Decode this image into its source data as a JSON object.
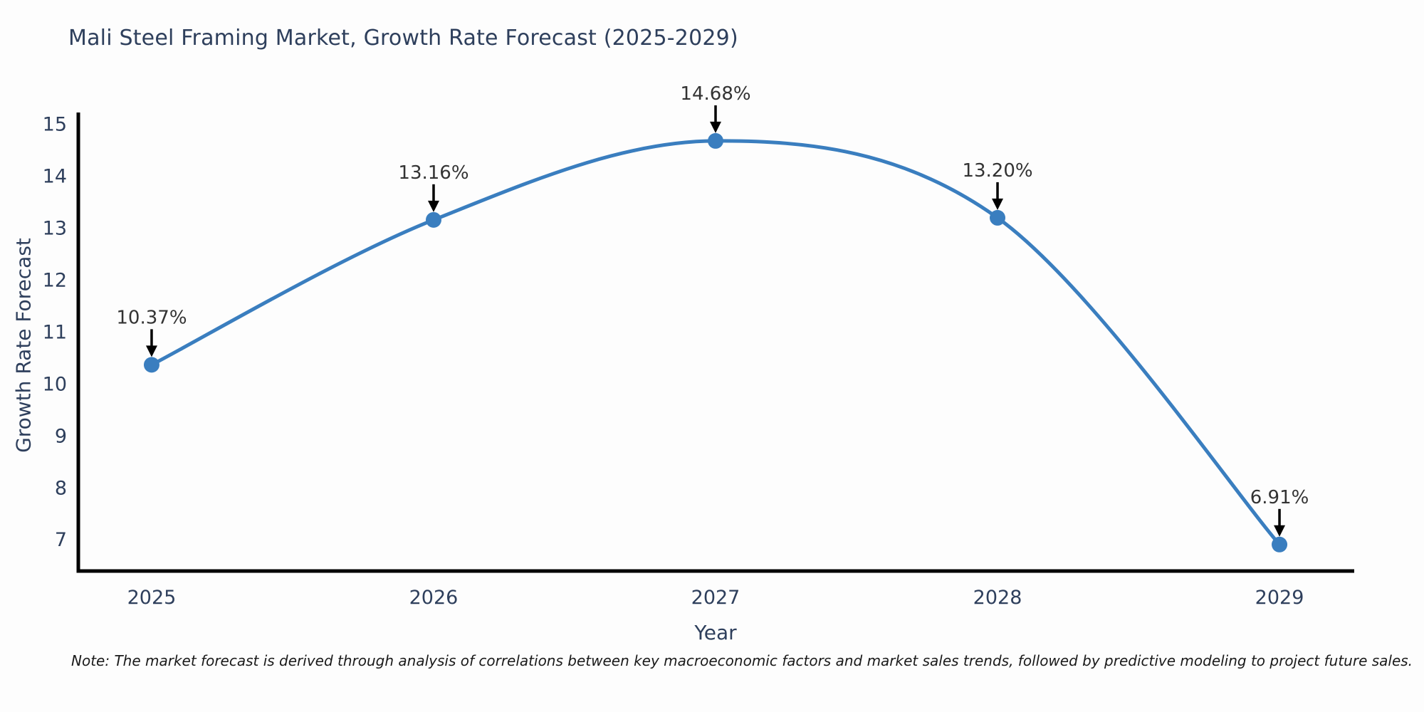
{
  "note": "Note: The market forecast is derived through analysis of correlations between key macroeconomic factors and market sales trends, followed by predictive modeling to project future sales.",
  "chart_data": {
    "type": "line",
    "title": "Mali Steel Framing Market, Growth Rate Forecast (2025-2029)",
    "xlabel": "Year",
    "ylabel": "Growth Rate Forecast",
    "categories": [
      "2025",
      "2026",
      "2027",
      "2028",
      "2029"
    ],
    "x": [
      2025,
      2026,
      2027,
      2028,
      2029
    ],
    "values": [
      10.37,
      13.16,
      14.68,
      13.2,
      6.91
    ],
    "point_labels": [
      "10.37%",
      "13.16%",
      "14.68%",
      "13.20%",
      "6.91%"
    ],
    "yticks": [
      7,
      8,
      9,
      10,
      11,
      12,
      13,
      14,
      15
    ],
    "ylim": [
      6.4,
      15.2
    ],
    "xlim": [
      2024.74,
      2029.26
    ],
    "grid": false,
    "legend": "none",
    "marker": "circle",
    "annotation_arrows": true,
    "line_shape": "spline",
    "colors": {
      "line": "#3a7ebf",
      "marker": "#3a7ebf",
      "axis": "#000000",
      "tick_text": "#2e3f5c",
      "annotation_text": "#333333",
      "arrow": "#000000",
      "note_text": "#1a1a1a",
      "background": "#fdfdfd"
    }
  }
}
